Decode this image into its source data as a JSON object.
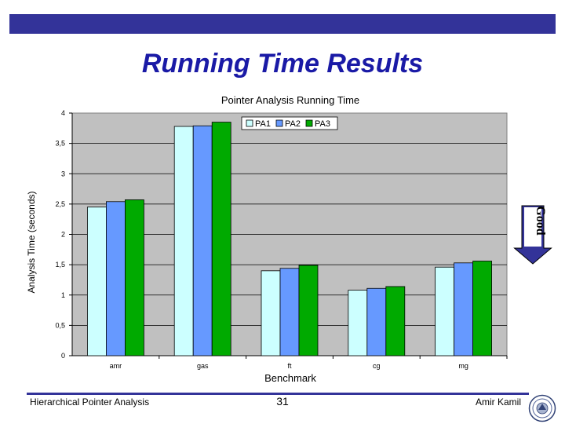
{
  "slide": {
    "title": "Running Time Results",
    "footer_left": "Hierarchical Pointer Analysis",
    "page_number": "31",
    "footer_right": "Amir Kamil",
    "annotation": "Good",
    "colors": {
      "bar": "#333399",
      "title": "#1a1aa6",
      "plot_bg": "#c0c0c0",
      "arrow": "#333399"
    }
  },
  "chart_data": {
    "type": "bar",
    "title": "Pointer Analysis Running Time",
    "xlabel": "Benchmark",
    "ylabel": "Analysis Time (seconds)",
    "categories": [
      "amr",
      "gas",
      "ft",
      "cg",
      "mg"
    ],
    "series": [
      {
        "name": "PA1",
        "color": "#ccffff",
        "values": [
          2.45,
          3.78,
          1.4,
          1.08,
          1.46
        ]
      },
      {
        "name": "PA2",
        "color": "#6699ff",
        "values": [
          2.54,
          3.79,
          1.44,
          1.11,
          1.53
        ]
      },
      {
        "name": "PA3",
        "color": "#00aa00",
        "values": [
          2.57,
          3.85,
          1.49,
          1.14,
          1.56
        ]
      }
    ],
    "ylim": [
      0,
      4
    ],
    "yticks": [
      0,
      0.5,
      1,
      1.5,
      2,
      2.5,
      3,
      3.5,
      4
    ],
    "ytick_labels": [
      "0",
      "0,5",
      "1",
      "1,5",
      "2",
      "2,5",
      "3",
      "3,5",
      "4"
    ],
    "grid": true,
    "legend": "top-right"
  }
}
